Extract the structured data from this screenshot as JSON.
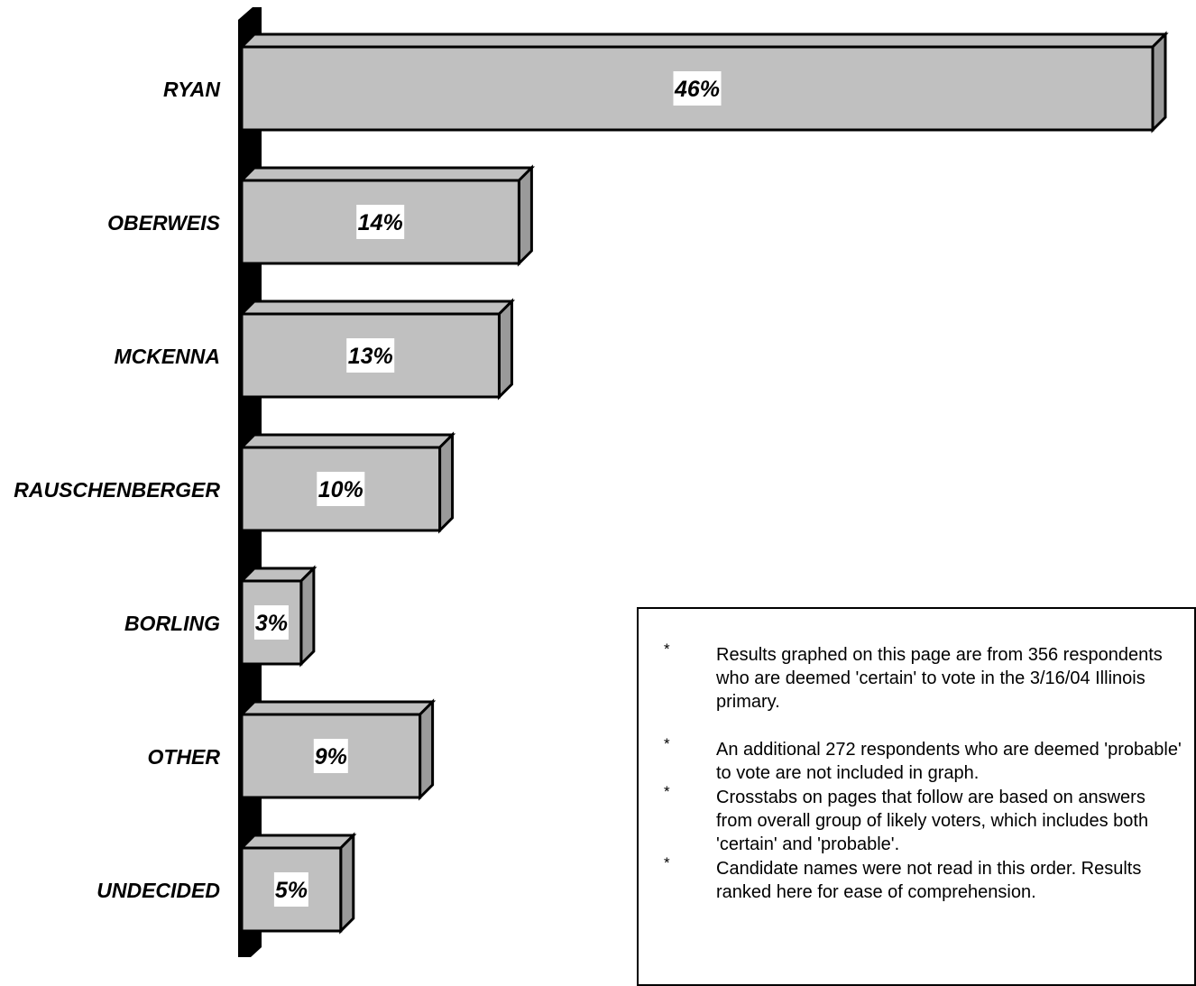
{
  "chart_data": {
    "type": "bar",
    "orientation": "horizontal",
    "categories": [
      "RYAN",
      "OBERWEIS",
      "MCKENNA",
      "RAUSCHENBERGER",
      "BORLING",
      "OTHER",
      "UNDECIDED"
    ],
    "values": [
      46,
      14,
      13,
      10,
      3,
      9,
      5
    ],
    "value_labels": [
      "46%",
      "14%",
      "13%",
      "10%",
      "3%",
      "9%",
      "5%"
    ],
    "xlim": [
      0,
      46
    ],
    "grid": false,
    "legend": "none",
    "colors": {
      "bar": "#c0c0c0",
      "bar_side": "#9a9a9a",
      "outline": "#000000",
      "axis": "#000000"
    }
  },
  "notes": [
    {
      "marker": "*",
      "text": "Results graphed on this page are from 356 respondents who are deemed 'certain' to vote in the 3/16/04 Illinois primary."
    },
    {
      "marker": "*",
      "text": "An additional 272 respondents who are deemed 'probable' to vote are not included in graph."
    },
    {
      "marker": "*",
      "text": "Crosstabs on pages that follow are based on answers from overall group of likely voters, which includes both 'certain' and 'probable'."
    },
    {
      "marker": "*",
      "text": "Candidate names were not read in this order. Results ranked here for ease of comprehension."
    }
  ]
}
